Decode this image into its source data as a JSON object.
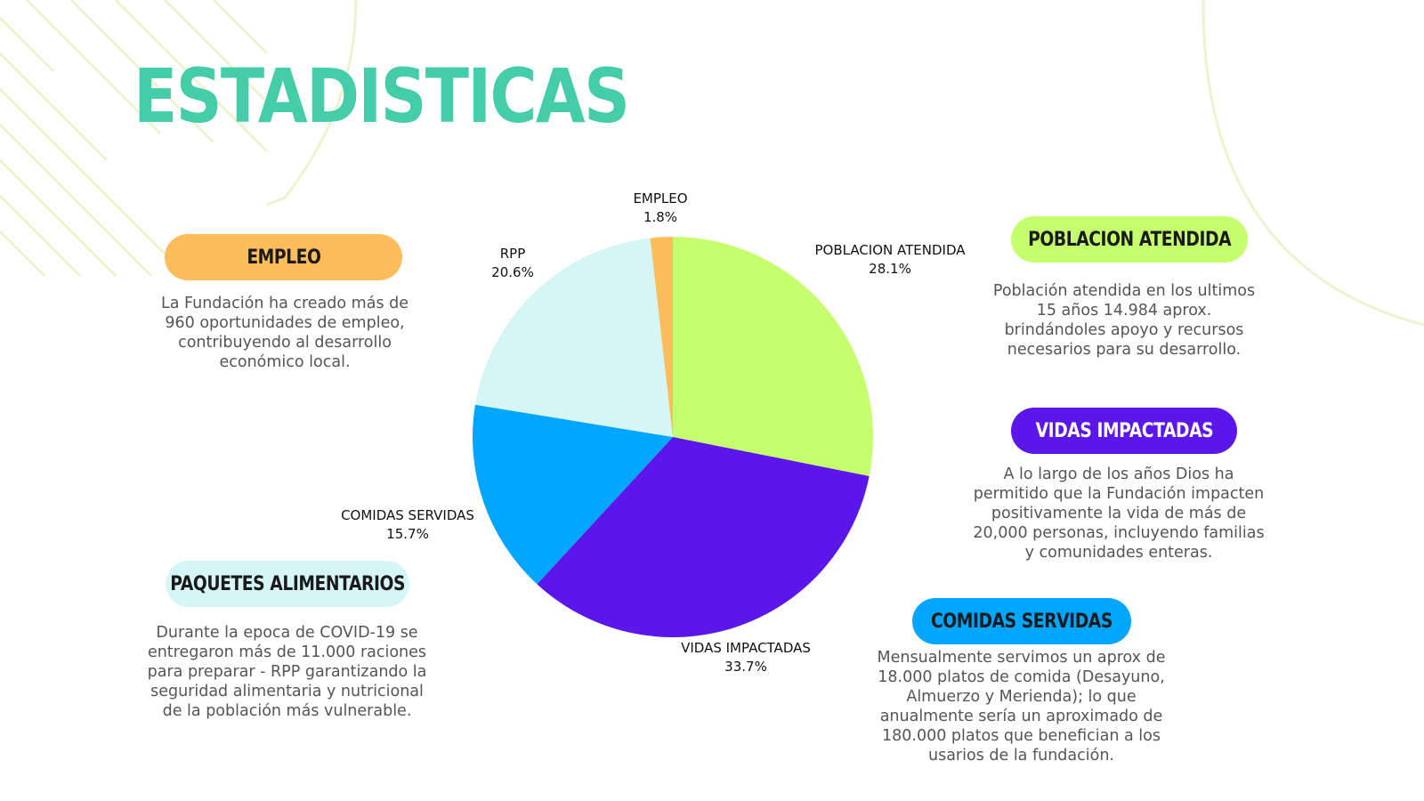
{
  "title": "ESTADISTICAS",
  "colors": {
    "title": "#45cda9",
    "empleo": "#fcbd5a",
    "poblacion": "#c5ff6e",
    "vidas": "#5b17e9",
    "comidas": "#00a6ff",
    "rpp": "#d6f5f7",
    "decor_lines": "#eef3cf"
  },
  "sections": {
    "empleo": {
      "heading": "EMPLEO",
      "text": "La Fundación ha creado más de 960 oportunidades de empleo, contribuyendo al desarrollo económico local."
    },
    "poblacion": {
      "heading": "POBLACION ATENDIDA",
      "text": "Población atendida en los ultimos 15 años 14.984 aprox. brindándoles apoyo y recursos necesarios para su desarrollo."
    },
    "vidas": {
      "heading": "VIDAS IMPACTADAS",
      "text": "A lo largo de los años Dios ha permitido que la Fundación impacten positivamente la vida de más de 20,000 personas, incluyendo familias y comunidades enteras."
    },
    "paquetes": {
      "heading": "PAQUETES ALIMENTARIOS",
      "text": "Durante la epoca de COVID-19 se entregaron más de 11.000 raciones para preparar - RPP garantizando la seguridad alimentaria y nutricional de la población más vulnerable."
    },
    "comidas": {
      "heading": "COMIDAS SERVIDAS",
      "text": "Mensualmente servimos un aprox de 18.000 platos de comida (Desayuno, Almuerzo y Merienda); lo que anualmente sería un aproximado de 180.000 platos que benefician a los usarios de la fundación."
    }
  },
  "chart_data": {
    "type": "pie",
    "start": "12 o'clock, clockwise",
    "slices": [
      {
        "label": "POBLACION ATENDIDA",
        "value": 28.1,
        "value_label": "28.1%",
        "color": "#c5ff6e"
      },
      {
        "label": "VIDAS IMPACTADAS",
        "value": 33.7,
        "value_label": "33.7%",
        "color": "#5b17e9"
      },
      {
        "label": "COMIDAS SERVIDAS",
        "value": 15.7,
        "value_label": "15.7%",
        "color": "#00a6ff"
      },
      {
        "label": "RPP",
        "value": 20.6,
        "value_label": "20.6%",
        "color": "#d6f5f7"
      },
      {
        "label": "EMPLEO",
        "value": 1.8,
        "value_label": "1.8%",
        "color": "#fcbd5a"
      }
    ]
  }
}
